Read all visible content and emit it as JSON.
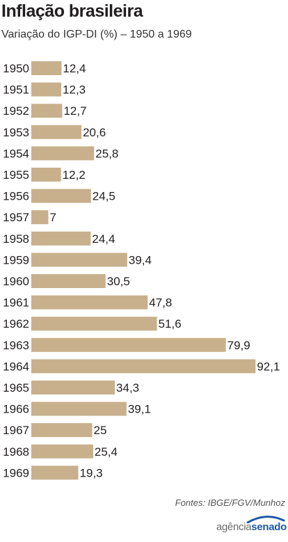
{
  "title": "Inflação brasileira",
  "subtitle": "Variação do IGP-DI (%) – 1950 a 1969",
  "source": "Fontes: IBGE/FGV/Munhoz",
  "logo": {
    "part1": "agência",
    "part2": "senado"
  },
  "colors": {
    "bar": "#c8b08c",
    "text": "#231f20",
    "logo_blue": "#1e5aa8"
  },
  "chart_data": {
    "type": "bar",
    "orientation": "horizontal",
    "categories": [
      "1950",
      "1951",
      "1952",
      "1953",
      "1954",
      "1955",
      "1956",
      "1957",
      "1958",
      "1959",
      "1960",
      "1961",
      "1962",
      "1963",
      "1964",
      "1965",
      "1966",
      "1967",
      "1968",
      "1969"
    ],
    "values": [
      12.4,
      12.3,
      12.7,
      20.6,
      25.8,
      12.2,
      24.5,
      7,
      24.4,
      39.4,
      30.5,
      47.8,
      51.6,
      79.9,
      92.1,
      34.3,
      39.1,
      25,
      25.4,
      19.3
    ],
    "labels": [
      "12,4",
      "12,3",
      "12,7",
      "20,6",
      "25,8",
      "12,2",
      "24,5",
      "7",
      "24,4",
      "39,4",
      "30,5",
      "47,8",
      "51,6",
      "79,9",
      "92,1",
      "34,3",
      "39,1",
      "25",
      "25,4",
      "19,3"
    ]
  }
}
